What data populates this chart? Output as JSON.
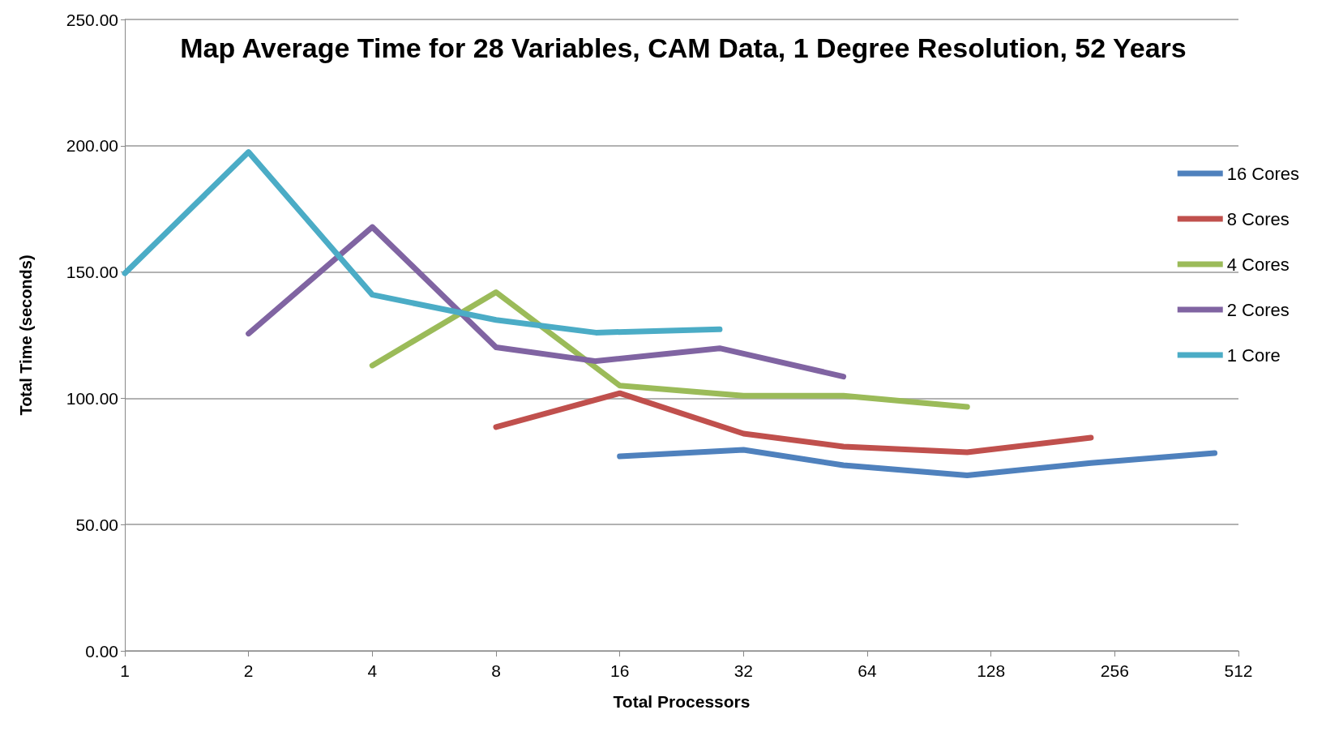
{
  "chart_data": {
    "type": "line",
    "title": "Map Average Time for 28 Variables, CAM Data, 1 Degree Resolution, 52 Years",
    "xlabel": "Total Processors",
    "ylabel": "Total Time (seconds)",
    "log": "x",
    "xlim": [
      1,
      512
    ],
    "xticks": [
      1,
      2,
      4,
      8,
      16,
      32,
      64,
      128,
      256,
      512
    ],
    "ylim": [
      0,
      250
    ],
    "yticks": [
      {
        "value": 0,
        "label": "0.00"
      },
      {
        "value": 50,
        "label": "50.00"
      },
      {
        "value": 100,
        "label": "100.00"
      },
      {
        "value": 150,
        "label": "150.00"
      },
      {
        "value": 200,
        "label": "200.00"
      },
      {
        "value": 250,
        "label": "250.00"
      }
    ],
    "grid": "y",
    "legend": "right",
    "marker": "none",
    "line_style": "solid",
    "series": [
      {
        "name": "16 Cores",
        "color": "#4f81bd",
        "x": [
          16,
          32,
          56,
          112,
          224,
          448
        ],
        "values": [
          77,
          79.6,
          73.5,
          69.5,
          74.4,
          78.3
        ]
      },
      {
        "name": "8 Cores",
        "color": "#c0504d",
        "x": [
          8,
          16,
          32,
          56,
          112,
          224
        ],
        "values": [
          88.6,
          102,
          86,
          80.9,
          78.6,
          84.4
        ]
      },
      {
        "name": "4 Cores",
        "color": "#9bbb59",
        "x": [
          4,
          8,
          16,
          32,
          56,
          112
        ],
        "values": [
          113,
          142,
          105,
          101,
          101,
          96.6
        ]
      },
      {
        "name": "2 Cores",
        "color": "#8064a2",
        "x": [
          2,
          4,
          8,
          14,
          28,
          56
        ],
        "values": [
          125.6,
          167.8,
          120.2,
          114.7,
          119.8,
          108.6
        ]
      },
      {
        "name": "1 Core",
        "color": "#4bacc6",
        "x": [
          1,
          2,
          4,
          8,
          14,
          28
        ],
        "values": [
          149.5,
          197.5,
          141,
          131,
          126,
          127.3
        ]
      }
    ]
  }
}
